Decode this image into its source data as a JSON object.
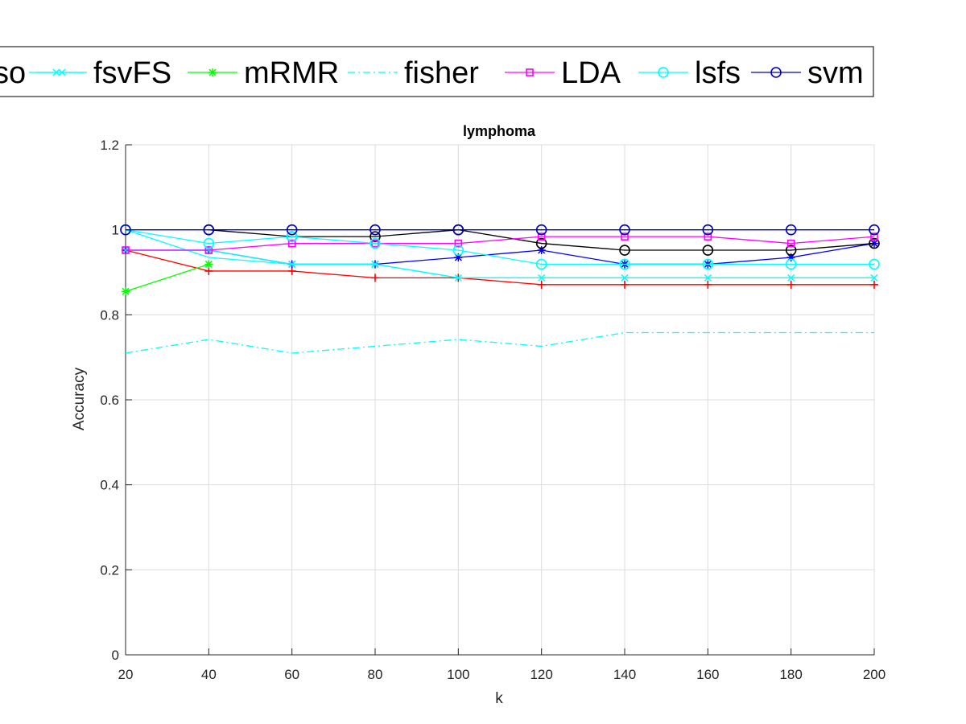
{
  "chart_data": {
    "type": "line",
    "title": "lymphoma",
    "xlabel": "k",
    "ylabel": "Accuracy",
    "xlim": [
      20,
      200
    ],
    "ylim": [
      0,
      1.2
    ],
    "xticks": [
      20,
      40,
      60,
      80,
      100,
      120,
      140,
      160,
      180,
      200
    ],
    "yticks": [
      0,
      0.2,
      0.4,
      0.6,
      0.8,
      1,
      1.2
    ],
    "xtick_labels": [
      "20",
      "40",
      "60",
      "80",
      "100",
      "120",
      "140",
      "160",
      "180",
      "200"
    ],
    "ytick_labels": [
      "0",
      "0.2",
      "0.4",
      "0.6",
      "0.8",
      "1",
      "1.2"
    ],
    "grid": true,
    "legend_position": "top, outside plot (clipped on left)",
    "x": [
      20,
      40,
      60,
      80,
      100,
      120,
      140,
      160,
      180,
      200
    ],
    "series": [
      {
        "legend": "",
        "color": "#ff0000",
        "marker": "plus",
        "line": "solid",
        "values": [
          0.952,
          0.903,
          0.903,
          0.887,
          0.887,
          0.871,
          0.871,
          0.871,
          0.871,
          0.871
        ]
      },
      {
        "legend": "",
        "color": "#0000ff",
        "marker": "asterisk",
        "line": "solid",
        "values": [
          0.952,
          0.952,
          0.919,
          0.919,
          0.935,
          0.952,
          0.919,
          0.919,
          0.935,
          0.968
        ]
      },
      {
        "legend": "",
        "color": "#000000",
        "marker": "circle",
        "line": "solid",
        "values": [
          null,
          1.0,
          0.984,
          0.984,
          1.0,
          0.968,
          0.952,
          0.952,
          0.952,
          0.968
        ]
      },
      {
        "legend": "so",
        "color": "#00ffff",
        "marker": "none",
        "line": "solid",
        "values": [
          1.0,
          0.935,
          0.919,
          0.919,
          0.887,
          0.887,
          0.887,
          0.887,
          0.887,
          0.887
        ]
      },
      {
        "legend": "fsvFS",
        "color": "#00ffff",
        "marker": "x",
        "line": "solid",
        "values": [
          0.952,
          0.952,
          0.919,
          0.919,
          0.887,
          0.887,
          0.887,
          0.887,
          0.887,
          0.887
        ]
      },
      {
        "legend": "mRMR",
        "color": "#00ff00",
        "marker": "asterisk",
        "line": "solid",
        "values": [
          0.855,
          0.919,
          null,
          null,
          null,
          null,
          null,
          null,
          null,
          null
        ]
      },
      {
        "legend": "fisher",
        "color": "#00ffff",
        "marker": "none",
        "line": "dashdot",
        "values": [
          0.71,
          0.742,
          0.71,
          0.726,
          0.742,
          0.726,
          0.758,
          0.758,
          0.758,
          0.758
        ]
      },
      {
        "legend": "LDA",
        "color": "#ff00ff",
        "marker": "square",
        "line": "solid",
        "values": [
          0.952,
          0.952,
          0.968,
          0.968,
          0.968,
          0.984,
          0.984,
          0.984,
          0.968,
          0.984
        ]
      },
      {
        "legend": "lsfs",
        "color": "#00ffff",
        "marker": "circle",
        "line": "solid",
        "values": [
          1.0,
          0.968,
          0.984,
          0.968,
          0.952,
          0.919,
          0.919,
          0.919,
          0.919,
          0.919
        ]
      },
      {
        "legend": "svm",
        "color": "#0000c0",
        "marker": "circle",
        "line": "solid",
        "values": [
          1.0,
          1.0,
          1.0,
          1.0,
          1.0,
          1.0,
          1.0,
          1.0,
          1.0,
          1.0
        ]
      }
    ]
  }
}
